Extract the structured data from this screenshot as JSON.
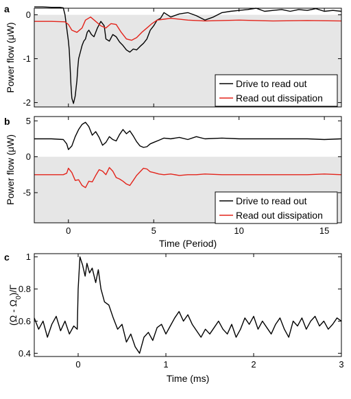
{
  "chart_data": [
    {
      "panel_label": "a",
      "type": "line",
      "xlim": [
        -2,
        16
      ],
      "ylim": [
        -2.1,
        0.15
      ],
      "yticks": [
        "-2",
        "-1",
        "0"
      ],
      "ytick_values": [
        -2,
        -1,
        0
      ],
      "ylabel": "Power flow (μW)",
      "shaded_below_zero": true,
      "legend": "bottom-right",
      "series": [
        {
          "name": "Drive to read out",
          "color": "#000000",
          "x": [
            -2,
            -1.5,
            -1,
            -0.5,
            -0.3,
            -0.2,
            -0.1,
            0,
            0.05,
            0.1,
            0.15,
            0.2,
            0.3,
            0.4,
            0.5,
            0.55,
            0.6,
            0.7,
            0.8,
            0.9,
            1.0,
            1.1,
            1.2,
            1.35,
            1.5,
            1.7,
            1.9,
            2.1,
            2.2,
            2.4,
            2.6,
            2.8,
            3.0,
            3.2,
            3.4,
            3.6,
            3.8,
            4.0,
            4.2,
            4.4,
            4.6,
            4.8,
            5.0,
            5.2,
            5.4,
            5.6,
            5.8,
            6.0,
            6.5,
            7.0,
            7.5,
            8.0,
            8.5,
            9.0,
            9.5,
            10.0,
            10.5,
            11.0,
            11.5,
            12.0,
            12.5,
            13.0,
            13.5,
            14.0,
            14.5,
            15.0,
            15.5,
            16.0
          ],
          "y": [
            0.18,
            0.18,
            0.17,
            0.17,
            0.16,
            0.0,
            -0.3,
            -0.6,
            -0.8,
            -1.2,
            -1.6,
            -1.9,
            -2.02,
            -1.85,
            -1.5,
            -1.2,
            -1.0,
            -0.85,
            -0.7,
            -0.6,
            -0.55,
            -0.4,
            -0.35,
            -0.45,
            -0.5,
            -0.3,
            -0.15,
            -0.25,
            -0.55,
            -0.6,
            -0.45,
            -0.5,
            -0.62,
            -0.7,
            -0.8,
            -0.85,
            -0.78,
            -0.8,
            -0.72,
            -0.65,
            -0.55,
            -0.35,
            -0.25,
            -0.12,
            -0.08,
            0.05,
            0.0,
            -0.05,
            0.02,
            0.05,
            -0.02,
            -0.12,
            -0.05,
            0.05,
            0.08,
            0.1,
            0.12,
            0.15,
            0.08,
            0.1,
            0.12,
            0.08,
            0.12,
            0.1,
            0.14,
            0.08,
            0.1,
            0.08
          ]
        },
        {
          "name": "Read out dissipation",
          "color": "#e32219",
          "x": [
            -2,
            -1,
            -0.2,
            0.0,
            0.2,
            0.5,
            0.8,
            1.0,
            1.3,
            1.6,
            1.9,
            2.2,
            2.5,
            2.8,
            3.1,
            3.4,
            3.7,
            4.0,
            4.3,
            4.6,
            4.9,
            5.2,
            5.6,
            6.0,
            7.0,
            8.0,
            9.0,
            10.0,
            12.0,
            14.0,
            16.0
          ],
          "y": [
            -0.15,
            -0.15,
            -0.16,
            -0.22,
            -0.35,
            -0.4,
            -0.3,
            -0.12,
            -0.05,
            -0.15,
            -0.25,
            -0.3,
            -0.2,
            -0.22,
            -0.4,
            -0.55,
            -0.58,
            -0.52,
            -0.4,
            -0.3,
            -0.2,
            -0.12,
            -0.1,
            -0.08,
            -0.12,
            -0.14,
            -0.13,
            -0.12,
            -0.14,
            -0.13,
            -0.14
          ]
        }
      ]
    },
    {
      "panel_label": "b",
      "type": "line",
      "xlim": [
        -2,
        16
      ],
      "ylim": [
        -9.2,
        5.6
      ],
      "xticks": [
        "0",
        "5",
        "10",
        "15"
      ],
      "xtick_values": [
        0,
        5,
        10,
        15
      ],
      "yticks": [
        "-5",
        "0",
        "5"
      ],
      "ytick_values": [
        -5,
        0,
        5
      ],
      "xlabel": "Time (Period)",
      "ylabel": "Power flow (μW)",
      "shaded_below_zero": true,
      "legend": "bottom-right",
      "series": [
        {
          "name": "Drive to read out",
          "color": "#000000",
          "x": [
            -2,
            -1,
            -0.3,
            -0.1,
            0.0,
            0.2,
            0.4,
            0.6,
            0.8,
            1.0,
            1.2,
            1.4,
            1.6,
            1.8,
            2.0,
            2.2,
            2.4,
            2.6,
            2.8,
            3.0,
            3.2,
            3.4,
            3.6,
            3.8,
            4.0,
            4.2,
            4.4,
            4.6,
            4.8,
            5.0,
            5.3,
            5.6,
            6.0,
            6.5,
            7.0,
            7.5,
            8.0,
            9.0,
            10.0,
            11.0,
            12.0,
            13.0,
            14.0,
            15.0,
            16.0
          ],
          "y": [
            2.5,
            2.5,
            2.4,
            1.8,
            1.0,
            1.5,
            2.8,
            3.8,
            4.5,
            4.8,
            4.2,
            3.0,
            3.5,
            2.7,
            1.6,
            2.0,
            2.8,
            2.4,
            2.2,
            3.1,
            3.8,
            3.2,
            3.6,
            2.9,
            2.1,
            1.5,
            1.3,
            1.4,
            1.8,
            2.0,
            2.3,
            2.6,
            2.5,
            2.7,
            2.4,
            2.8,
            2.5,
            2.6,
            2.5,
            2.5,
            2.5,
            2.5,
            2.5,
            2.4,
            2.5
          ]
        },
        {
          "name": "Read out dissipation",
          "color": "#e32219",
          "x": [
            -2,
            -1,
            -0.3,
            -0.1,
            0.0,
            0.2,
            0.4,
            0.6,
            0.8,
            1.0,
            1.2,
            1.4,
            1.6,
            1.8,
            2.0,
            2.2,
            2.4,
            2.6,
            2.8,
            3.0,
            3.2,
            3.4,
            3.6,
            3.8,
            4.0,
            4.2,
            4.4,
            4.6,
            4.8,
            5.0,
            5.3,
            5.6,
            6.0,
            6.5,
            7.0,
            7.5,
            8.0,
            9.0,
            10.0,
            11.0,
            12.0,
            13.0,
            14.0,
            15.0,
            16.0
          ],
          "y": [
            -2.5,
            -2.5,
            -2.5,
            -2.3,
            -1.6,
            -2.2,
            -3.3,
            -3.2,
            -4.0,
            -4.3,
            -3.4,
            -3.5,
            -2.6,
            -1.8,
            -2.0,
            -2.5,
            -1.5,
            -2.0,
            -2.9,
            -3.1,
            -3.4,
            -3.8,
            -4.0,
            -3.3,
            -2.6,
            -2.1,
            -1.6,
            -1.7,
            -2.1,
            -2.2,
            -2.4,
            -2.5,
            -2.4,
            -2.6,
            -2.5,
            -2.5,
            -2.4,
            -2.5,
            -2.5,
            -2.5,
            -2.5,
            -2.5,
            -2.5,
            -2.4,
            -2.5
          ]
        }
      ],
      "legend_labels": [
        "Drive to read out",
        "Read out dissipation"
      ]
    },
    {
      "panel_label": "c",
      "type": "line",
      "xlim": [
        -0.5,
        3
      ],
      "ylim": [
        0.38,
        1.02
      ],
      "xticks": [
        "0",
        "1",
        "2",
        "3"
      ],
      "xtick_values": [
        0,
        1,
        2,
        3
      ],
      "yticks": [
        "0.4",
        "0.6",
        "0.8",
        "1"
      ],
      "ytick_values": [
        0.4,
        0.6,
        0.8,
        1.0
      ],
      "xlabel": "Time (ms)",
      "ylabel": "(Ω - Ω0)/Γ",
      "series": [
        {
          "name": "",
          "color": "#000000",
          "x": [
            -0.5,
            -0.45,
            -0.4,
            -0.35,
            -0.3,
            -0.25,
            -0.2,
            -0.15,
            -0.1,
            -0.05,
            -0.01,
            0.0,
            0.02,
            0.05,
            0.08,
            0.1,
            0.13,
            0.16,
            0.2,
            0.23,
            0.26,
            0.3,
            0.35,
            0.4,
            0.45,
            0.5,
            0.55,
            0.6,
            0.65,
            0.7,
            0.75,
            0.8,
            0.85,
            0.9,
            0.95,
            1.0,
            1.05,
            1.1,
            1.15,
            1.2,
            1.25,
            1.3,
            1.35,
            1.4,
            1.45,
            1.5,
            1.55,
            1.6,
            1.65,
            1.7,
            1.75,
            1.8,
            1.85,
            1.9,
            1.95,
            2.0,
            2.05,
            2.1,
            2.15,
            2.2,
            2.25,
            2.3,
            2.35,
            2.4,
            2.45,
            2.5,
            2.55,
            2.6,
            2.65,
            2.7,
            2.75,
            2.8,
            2.85,
            2.9,
            2.95,
            3.0
          ],
          "y": [
            0.62,
            0.55,
            0.6,
            0.5,
            0.58,
            0.63,
            0.54,
            0.6,
            0.52,
            0.57,
            0.55,
            0.8,
            1.0,
            0.95,
            0.88,
            0.96,
            0.9,
            0.93,
            0.84,
            0.92,
            0.8,
            0.72,
            0.7,
            0.62,
            0.55,
            0.58,
            0.47,
            0.52,
            0.44,
            0.4,
            0.5,
            0.53,
            0.48,
            0.56,
            0.58,
            0.52,
            0.57,
            0.62,
            0.66,
            0.6,
            0.64,
            0.58,
            0.54,
            0.5,
            0.55,
            0.52,
            0.56,
            0.6,
            0.55,
            0.52,
            0.58,
            0.5,
            0.55,
            0.62,
            0.58,
            0.63,
            0.55,
            0.6,
            0.56,
            0.52,
            0.58,
            0.62,
            0.55,
            0.5,
            0.6,
            0.57,
            0.62,
            0.55,
            0.6,
            0.63,
            0.57,
            0.6,
            0.55,
            0.58,
            0.62,
            0.6
          ]
        }
      ]
    }
  ]
}
